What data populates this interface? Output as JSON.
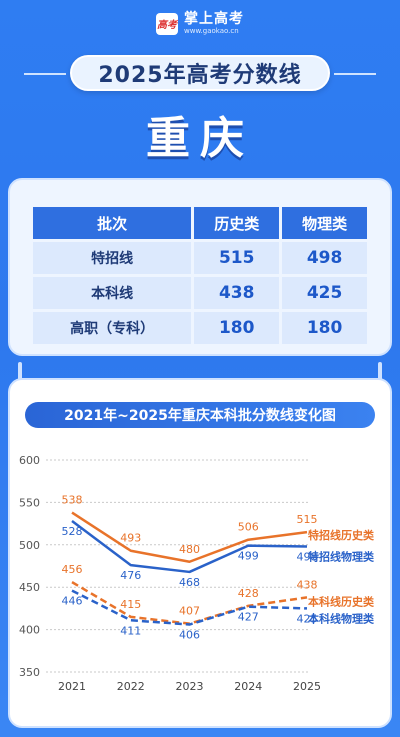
{
  "brand": {
    "mark": "高考",
    "name": "掌上高考",
    "url": "www.gaokao.cn"
  },
  "title": "2025年高考分数线",
  "city": "重庆",
  "table": {
    "headers": [
      "批次",
      "历史类",
      "物理类"
    ],
    "rows": [
      {
        "label": "特招线",
        "history": "515",
        "physics": "498"
      },
      {
        "label": "本科线",
        "history": "438",
        "physics": "425"
      },
      {
        "label": "高职（专科）",
        "history": "180",
        "physics": "180"
      }
    ]
  },
  "chart_data": {
    "type": "line",
    "title": "2021年~2025年重庆本科批分数线变化图",
    "x": [
      "2021",
      "2022",
      "2023",
      "2024",
      "2025"
    ],
    "ylim": [
      350,
      600
    ],
    "yticks": [
      350,
      400,
      450,
      500,
      550,
      600
    ],
    "grid": true,
    "series": [
      {
        "name": "特招线历史类",
        "values": [
          538,
          493,
          480,
          506,
          515
        ],
        "color": "#e8732a",
        "dashed": false
      },
      {
        "name": "特招线物理类",
        "values": [
          528,
          476,
          468,
          499,
          498
        ],
        "color": "#2a62c9",
        "dashed": false
      },
      {
        "name": "本科线历史类",
        "values": [
          456,
          415,
          407,
          428,
          438
        ],
        "color": "#e8732a",
        "dashed": true
      },
      {
        "name": "本科线物理类",
        "values": [
          446,
          411,
          406,
          427,
          425
        ],
        "color": "#2a62c9",
        "dashed": true
      }
    ]
  }
}
